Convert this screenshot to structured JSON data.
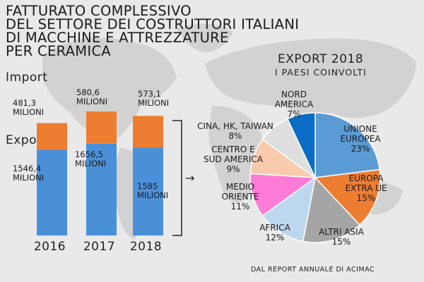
{
  "title_lines": [
    "FATTURATO COMPLESSIVO",
    "DEL SETTORE DEI COSTRUTTORI ITALIANI",
    "DI MACCHINE E ATTREZZATURE",
    "PER CERAMICA"
  ],
  "import_label": "Import",
  "export_label": "Export",
  "colors": {
    "import": "#ed7d31",
    "export": "#4a90d9",
    "background": "#e9e9e9",
    "map": "#d0d0d0"
  },
  "chart_data": [
    {
      "type": "bar",
      "stacked": true,
      "categories": [
        "2016",
        "2017",
        "2018"
      ],
      "series": [
        {
          "name": "Export",
          "values": [
            1546.4,
            1656.5,
            1585
          ],
          "labels": [
            [
              "1546,4",
              "MILIONI"
            ],
            [
              "1656,5",
              "MILIONI"
            ],
            [
              "1585",
              "MILIONI"
            ]
          ]
        },
        {
          "name": "Import",
          "values": [
            481.3,
            580.6,
            573.1
          ],
          "labels": [
            [
              "481,3",
              "MILIONI"
            ],
            [
              "580,6",
              "MILIONI"
            ],
            [
              "573,1",
              "MILIONI"
            ]
          ]
        }
      ]
    },
    {
      "type": "pie",
      "title": "EXPORT 2018",
      "subtitle": "I PAESI COINVOLTI",
      "slices": [
        {
          "lines": [
            "UNIONE",
            "EUROPEA",
            "23%"
          ],
          "value": 23,
          "color": "#5b9bd5"
        },
        {
          "lines": [
            "EUROPA",
            "EXTRA UE",
            "15%"
          ],
          "value": 15,
          "color": "#ed7d31"
        },
        {
          "lines": [
            "ALTRI ASIA",
            "15%"
          ],
          "value": 15,
          "color": "#a5a5a5"
        },
        {
          "lines": [
            "AFRICA",
            "12%"
          ],
          "value": 12,
          "color": "#bdd7ee"
        },
        {
          "lines": [
            "MEDIO",
            "ORIENTE",
            "11%"
          ],
          "value": 11,
          "color": "#ff7bd8"
        },
        {
          "lines": [
            "CENTRO E",
            "SUD AMERICA",
            "9%"
          ],
          "value": 9,
          "color": "#f8cbad"
        },
        {
          "lines": [
            "CINA, HK, TAIWAN",
            "8%"
          ],
          "value": 8,
          "color": "#dedede"
        },
        {
          "lines": [
            "NORD",
            "AMERICA",
            "7%"
          ],
          "value": 7,
          "color": "#0a6cc4"
        }
      ]
    }
  ],
  "source": "DAL REPORT ANNUALE DI ACIMAC",
  "arrow": "→"
}
